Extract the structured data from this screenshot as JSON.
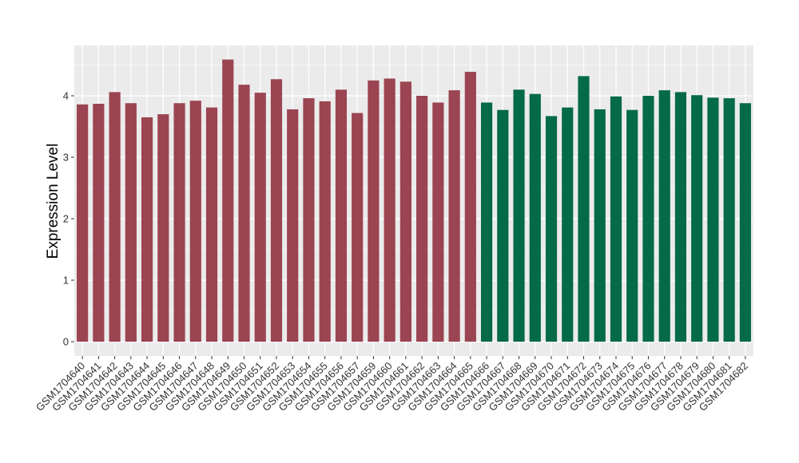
{
  "chart_data": {
    "type": "bar",
    "title": "",
    "xlabel": "",
    "ylabel": "Expression Level",
    "ylim": [
      0,
      4.65
    ],
    "yticks": [
      0,
      1,
      2,
      3,
      4
    ],
    "grid": true,
    "legend": "none",
    "colors": {
      "group1": "#9b4452",
      "group2": "#046a47",
      "panel": "#ebebeb",
      "grid": "#ffffff"
    },
    "categories": [
      "GSM1704640",
      "GSM1704641",
      "GSM1704642",
      "GSM1704643",
      "GSM1704644",
      "GSM1704645",
      "GSM1704646",
      "GSM1704647",
      "GSM1704648",
      "GSM1704649",
      "GSM1704650",
      "GSM1704651",
      "GSM1704652",
      "GSM1704653",
      "GSM1704654",
      "GSM1704655",
      "GSM1704656",
      "GSM1704657",
      "GSM1704659",
      "GSM1704660",
      "GSM1704661",
      "GSM1704662",
      "GSM1704663",
      "GSM1704664",
      "GSM1704665",
      "GSM1704666",
      "GSM1704667",
      "GSM1704668",
      "GSM1704669",
      "GSM1704670",
      "GSM1704671",
      "GSM1704672",
      "GSM1704673",
      "GSM1704674",
      "GSM1704675",
      "GSM1704676",
      "GSM1704677",
      "GSM1704678",
      "GSM1704679",
      "GSM1704680",
      "GSM1704681",
      "GSM1704682"
    ],
    "values": [
      3.86,
      3.87,
      4.06,
      3.88,
      3.65,
      3.7,
      3.88,
      3.92,
      3.81,
      4.59,
      4.18,
      4.05,
      4.27,
      3.78,
      3.96,
      3.91,
      4.1,
      3.72,
      4.25,
      4.28,
      4.23,
      4.0,
      3.89,
      4.09,
      4.39,
      3.89,
      3.77,
      4.1,
      4.03,
      3.67,
      3.81,
      4.32,
      3.78,
      3.99,
      3.77,
      4.0,
      4.09,
      4.06,
      4.01,
      3.97,
      3.96,
      3.88
    ],
    "groups": [
      1,
      1,
      1,
      1,
      1,
      1,
      1,
      1,
      1,
      1,
      1,
      1,
      1,
      1,
      1,
      1,
      1,
      1,
      1,
      1,
      1,
      1,
      1,
      1,
      1,
      2,
      2,
      2,
      2,
      2,
      2,
      2,
      2,
      2,
      2,
      2,
      2,
      2,
      2,
      2,
      2,
      2
    ]
  }
}
